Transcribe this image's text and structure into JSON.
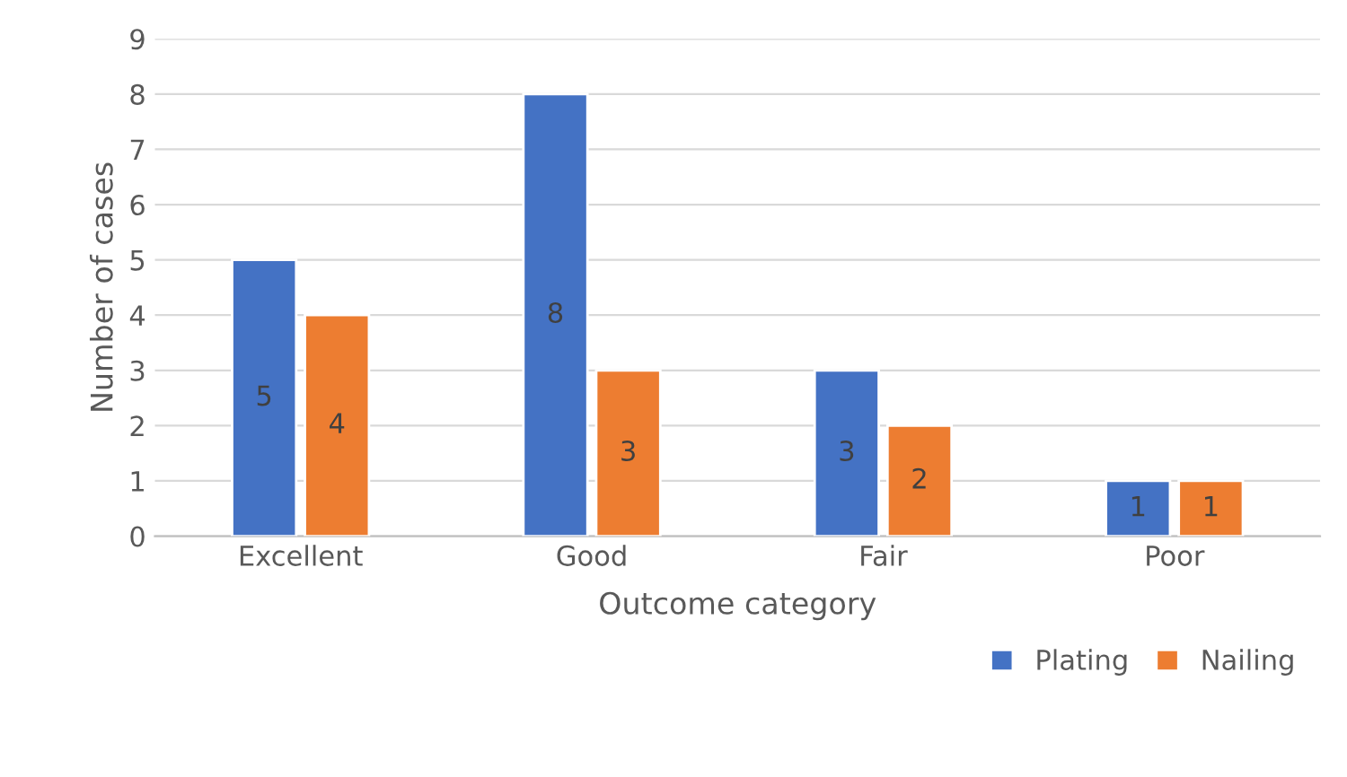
{
  "chart_data": {
    "type": "bar",
    "xlabel": "Outcome category",
    "ylabel": "Number of cases",
    "categories": [
      "Excellent",
      "Good",
      "Fair",
      "Poor"
    ],
    "series": [
      {
        "name": "Plating",
        "color": "#4472c4",
        "values": [
          5,
          8,
          3,
          1
        ]
      },
      {
        "name": "Nailing",
        "color": "#ed7d31",
        "values": [
          4,
          3,
          2,
          1
        ]
      }
    ],
    "ylim": [
      0,
      9
    ],
    "yticks": [
      0,
      1,
      2,
      3,
      4,
      5,
      6,
      7,
      8,
      9
    ],
    "grid": "y",
    "legend": "bottom right",
    "data_labels": true
  }
}
